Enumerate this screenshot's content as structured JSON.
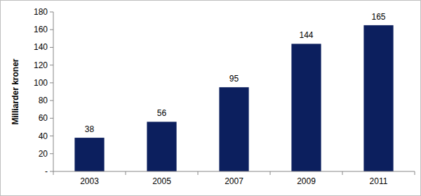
{
  "chart_data": {
    "type": "bar",
    "y_label": "Milliarder kroner",
    "categories": [
      "2003",
      "2005",
      "2007",
      "2009",
      "2011"
    ],
    "values": [
      38,
      56,
      95,
      144,
      165
    ],
    "color": "#0c1f5e",
    "ylim": [
      0,
      180
    ],
    "yticks": [
      {
        "value": 0,
        "label": "-"
      },
      20,
      40,
      60,
      80,
      100,
      120,
      140,
      160,
      180
    ],
    "grid": false,
    "data_labels": true
  }
}
